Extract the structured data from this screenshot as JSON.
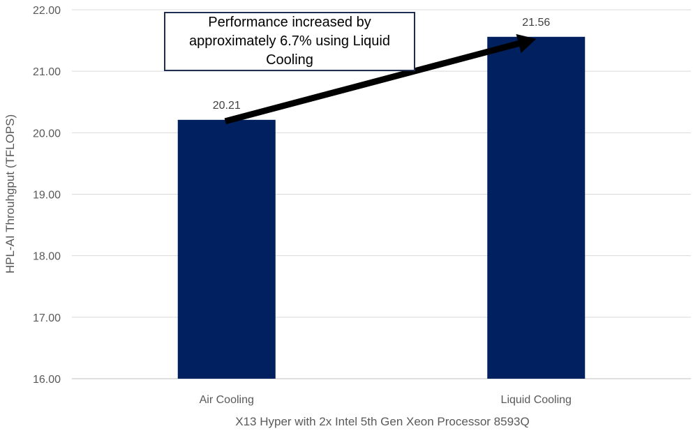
{
  "chart_data": {
    "type": "bar",
    "categories": [
      "Air Cooling",
      "Liquid Cooling"
    ],
    "values": [
      20.21,
      21.56
    ],
    "data_labels": [
      "20.21",
      "21.56"
    ],
    "title": "",
    "xlabel": "X13 Hyper with 2x Intel 5th Gen Xeon Processor 8593Q",
    "ylabel": "HPL-AI Throuhgput (TFLOPS)",
    "ylim": [
      16.0,
      22.0
    ],
    "yticks": [
      "16.00",
      "17.00",
      "18.00",
      "19.00",
      "20.00",
      "21.00",
      "22.00"
    ],
    "grid": true,
    "bar_color": "#002060",
    "annotation": {
      "text": "Performance increased by approximately  6.7% using Liquid Cooling",
      "arrow": "from Air Cooling bar to Liquid Cooling bar"
    }
  }
}
